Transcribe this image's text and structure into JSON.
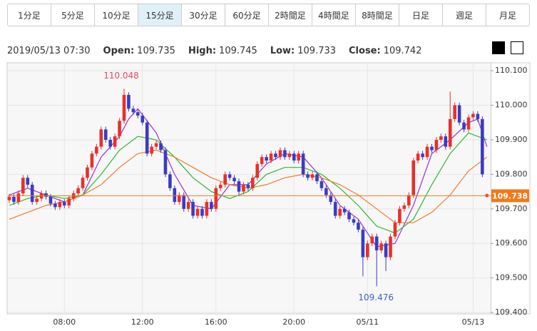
{
  "tabs": [
    "1分足",
    "5分足",
    "10分足",
    "15分足",
    "30分足",
    "60分足",
    "2時間足",
    "4時間足",
    "8時間足",
    "日足",
    "週足",
    "月足"
  ],
  "selected_tab": 3,
  "info": {
    "datetime": "2019/05/13 07:30",
    "open_label": "Open:",
    "high_label": "High:",
    "low_label": "Low:",
    "close_label": "Close:"
  },
  "chart_data": {
    "type": "candlestick",
    "categories": [
      null,
      null,
      null,
      null,
      null,
      null,
      null,
      null,
      null,
      null,
      null,
      null,
      "08:00",
      null,
      null,
      null,
      null,
      null,
      null,
      null,
      null,
      null,
      null,
      null,
      null,
      null,
      null,
      null,
      null,
      "12:00",
      null,
      null,
      null,
      null,
      null,
      null,
      null,
      null,
      null,
      null,
      null,
      null,
      null,
      null,
      null,
      "16:00",
      null,
      null,
      null,
      null,
      null,
      null,
      null,
      null,
      null,
      null,
      null,
      null,
      null,
      null,
      null,
      null,
      "20:00",
      null,
      null,
      null,
      null,
      null,
      null,
      null,
      null,
      null,
      null,
      null,
      null,
      null,
      null,
      null,
      "05/11",
      null,
      null,
      null,
      null,
      null,
      null,
      null,
      null,
      null,
      null,
      null,
      null,
      null,
      null,
      null,
      null,
      null,
      null,
      null,
      null,
      null,
      null,
      "05/13",
      null,
      null,
      null
    ],
    "open": [
      109.725,
      109.735,
      109.72,
      109.745,
      109.79,
      109.77,
      109.72,
      109.73,
      109.745,
      109.735,
      109.715,
      109.705,
      109.72,
      109.71,
      109.73,
      109.745,
      109.76,
      109.79,
      109.82,
      109.86,
      109.88,
      109.93,
      109.9,
      109.88,
      109.91,
      109.955,
      110.03,
      109.99,
      109.98,
      109.97,
      109.95,
      109.86,
      109.88,
      109.89,
      109.87,
      109.8,
      109.76,
      109.72,
      109.74,
      109.7,
      109.72,
      109.68,
      109.7,
      109.68,
      109.72,
      109.7,
      109.76,
      109.77,
      109.8,
      109.79,
      109.78,
      109.75,
      109.77,
      109.76,
      109.79,
      109.83,
      109.85,
      109.84,
      109.86,
      109.85,
      109.87,
      109.85,
      109.86,
      109.84,
      109.86,
      109.8,
      109.79,
      109.8,
      109.78,
      109.76,
      109.74,
      109.72,
      109.68,
      109.7,
      109.69,
      109.67,
      109.66,
      109.64,
      109.56,
      109.6,
      109.62,
      109.58,
      109.6,
      109.56,
      109.62,
      109.66,
      109.7,
      109.71,
      109.74,
      109.84,
      109.86,
      109.85,
      109.88,
      109.87,
      109.9,
      109.91,
      109.88,
      109.96,
      110.0,
      109.95,
      109.93,
      109.965,
      109.975,
      109.96,
      109.735
    ],
    "high": [
      109.743,
      109.743,
      109.753,
      109.798,
      109.798,
      109.778,
      109.738,
      109.753,
      109.753,
      109.743,
      109.723,
      109.728,
      109.728,
      109.738,
      109.753,
      109.768,
      109.798,
      109.828,
      109.868,
      109.888,
      109.938,
      109.938,
      109.908,
      109.918,
      109.963,
      110.048,
      110.038,
      109.998,
      109.988,
      109.978,
      109.958,
      109.888,
      109.898,
      109.898,
      109.878,
      109.808,
      109.768,
      109.748,
      109.748,
      109.728,
      109.728,
      109.708,
      109.708,
      109.728,
      109.728,
      109.768,
      109.778,
      109.808,
      109.808,
      109.798,
      109.788,
      109.778,
      109.778,
      109.798,
      109.838,
      109.858,
      109.858,
      109.868,
      109.868,
      109.878,
      109.878,
      109.868,
      109.868,
      109.868,
      109.868,
      109.808,
      109.808,
      109.808,
      109.788,
      109.768,
      109.748,
      109.728,
      109.708,
      109.708,
      109.698,
      109.678,
      109.668,
      109.648,
      109.608,
      109.628,
      109.628,
      109.608,
      109.608,
      109.628,
      109.668,
      109.708,
      109.718,
      109.748,
      109.848,
      109.868,
      109.868,
      109.888,
      109.888,
      109.908,
      109.918,
      109.918,
      110.04,
      110.008,
      110.008,
      109.958,
      109.973,
      109.983,
      109.983,
      109.968,
      109.745
    ],
    "low": [
      109.717,
      109.712,
      109.712,
      109.737,
      109.762,
      109.712,
      109.712,
      109.722,
      109.727,
      109.707,
      109.697,
      109.697,
      109.702,
      109.702,
      109.722,
      109.737,
      109.752,
      109.782,
      109.812,
      109.852,
      109.872,
      109.892,
      109.872,
      109.872,
      109.902,
      109.947,
      109.982,
      109.972,
      109.962,
      109.942,
      109.852,
      109.852,
      109.872,
      109.862,
      109.792,
      109.752,
      109.712,
      109.712,
      109.692,
      109.692,
      109.672,
      109.672,
      109.672,
      109.672,
      109.692,
      109.692,
      109.752,
      109.762,
      109.782,
      109.772,
      109.742,
      109.742,
      109.752,
      109.752,
      109.782,
      109.822,
      109.832,
      109.832,
      109.842,
      109.842,
      109.842,
      109.842,
      109.832,
      109.832,
      109.792,
      109.782,
      109.782,
      109.772,
      109.752,
      109.732,
      109.712,
      109.672,
      109.672,
      109.682,
      109.662,
      109.652,
      109.632,
      109.505,
      109.552,
      109.592,
      109.476,
      109.572,
      109.52,
      109.552,
      109.612,
      109.652,
      109.692,
      109.702,
      109.732,
      109.832,
      109.842,
      109.842,
      109.862,
      109.862,
      109.892,
      109.872,
      109.872,
      109.952,
      109.942,
      109.922,
      109.922,
      109.957,
      109.952,
      109.792,
      109.733
    ],
    "close": [
      109.735,
      109.72,
      109.745,
      109.79,
      109.77,
      109.72,
      109.73,
      109.745,
      109.735,
      109.715,
      109.705,
      109.72,
      109.71,
      109.73,
      109.745,
      109.76,
      109.79,
      109.82,
      109.86,
      109.88,
      109.93,
      109.9,
      109.88,
      109.91,
      109.955,
      110.03,
      109.99,
      109.98,
      109.97,
      109.95,
      109.86,
      109.88,
      109.89,
      109.87,
      109.8,
      109.76,
      109.72,
      109.74,
      109.7,
      109.72,
      109.68,
      109.7,
      109.68,
      109.72,
      109.7,
      109.76,
      109.77,
      109.8,
      109.79,
      109.78,
      109.75,
      109.77,
      109.76,
      109.79,
      109.83,
      109.85,
      109.84,
      109.86,
      109.85,
      109.87,
      109.85,
      109.86,
      109.84,
      109.86,
      109.8,
      109.79,
      109.8,
      109.78,
      109.76,
      109.74,
      109.72,
      109.68,
      109.7,
      109.69,
      109.67,
      109.66,
      109.64,
      109.56,
      109.6,
      109.62,
      109.58,
      109.6,
      109.56,
      109.62,
      109.66,
      109.7,
      109.71,
      109.74,
      109.84,
      109.86,
      109.85,
      109.88,
      109.87,
      109.9,
      109.91,
      109.88,
      109.96,
      110.0,
      109.95,
      109.93,
      109.965,
      109.975,
      109.96,
      109.8,
      109.742
    ],
    "up_color": "#e8302a",
    "down_color": "#3b3bc4",
    "series": [
      {
        "color": "#9a2fd0",
        "x": [
          0,
          4,
          8,
          12,
          16,
          20,
          24,
          26,
          28,
          32,
          36,
          40,
          44,
          48,
          52,
          56,
          60,
          64,
          68,
          72,
          76,
          80,
          84,
          88,
          92,
          96,
          100,
          102,
          104
        ],
        "values": [
          109.74,
          109.76,
          109.74,
          109.72,
          109.74,
          109.85,
          109.91,
          109.96,
          109.99,
          109.92,
          109.8,
          109.71,
          109.7,
          109.77,
          109.77,
          109.83,
          109.86,
          109.85,
          109.79,
          109.71,
          109.67,
          109.59,
          109.6,
          109.71,
          109.86,
          109.9,
          109.95,
          109.96,
          109.88
        ]
      },
      {
        "color": "#2cb82c",
        "x": [
          0,
          4,
          8,
          12,
          16,
          20,
          24,
          28,
          32,
          36,
          40,
          44,
          48,
          52,
          56,
          60,
          64,
          68,
          72,
          76,
          80,
          84,
          88,
          92,
          96,
          100,
          104
        ],
        "values": [
          109.71,
          109.73,
          109.74,
          109.73,
          109.74,
          109.8,
          109.87,
          109.91,
          109.9,
          109.85,
          109.79,
          109.75,
          109.73,
          109.75,
          109.8,
          109.82,
          109.82,
          109.8,
          109.76,
          109.71,
          109.65,
          109.63,
          109.67,
          109.77,
          109.86,
          109.92,
          109.9
        ]
      },
      {
        "color": "#f07a2a",
        "x": [
          0,
          4,
          8,
          12,
          16,
          20,
          24,
          28,
          32,
          36,
          40,
          44,
          48,
          52,
          56,
          60,
          64,
          68,
          72,
          76,
          80,
          84,
          88,
          92,
          96,
          100,
          104
        ],
        "values": [
          109.67,
          109.69,
          109.71,
          109.72,
          109.74,
          109.77,
          109.82,
          109.86,
          109.87,
          109.85,
          109.82,
          109.79,
          109.77,
          109.76,
          109.77,
          109.79,
          109.8,
          109.79,
          109.77,
          109.74,
          109.7,
          109.66,
          109.66,
          109.69,
          109.74,
          109.81,
          109.85
        ]
      }
    ],
    "ylim": [
      109.396,
      110.123
    ],
    "yticks": [
      {
        "value": 109.4,
        "label": "109.400"
      },
      {
        "value": 109.5,
        "label": "109.500"
      },
      {
        "value": 109.6,
        "label": "109.600"
      },
      {
        "value": 109.7,
        "label": "109.700"
      },
      {
        "value": 109.8,
        "label": "109.800"
      },
      {
        "value": 109.9,
        "label": "109.900"
      },
      {
        "value": 110.0,
        "label": "110.000"
      },
      {
        "value": 110.1,
        "label": "110.100"
      }
    ],
    "grid": true,
    "current_price": 109.738,
    "current_price_color": "#f07a1a",
    "high_label_color": "#e8456a",
    "low_label_color": "#3b5fc4"
  }
}
